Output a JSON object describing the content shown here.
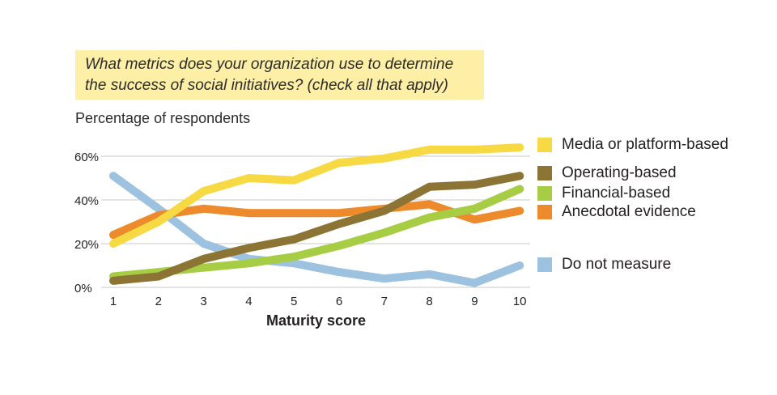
{
  "question": {
    "line1": "What metrics does your organization use to determine",
    "line2": "the success of social initiatives? (check all that apply)"
  },
  "subtitle": "Percentage of respondents",
  "chart_data": {
    "type": "line",
    "xlabel": "Maturity score",
    "ylabel": "Percentage of respondents",
    "x": [
      1,
      2,
      3,
      4,
      5,
      6,
      7,
      8,
      9,
      10
    ],
    "ylim": [
      0,
      60
    ],
    "yticks": [
      "0%",
      "20%",
      "40%",
      "60%"
    ],
    "grid": true,
    "legend_position": "right",
    "series": [
      {
        "name": "Media or platform-based",
        "color": "#f7d944",
        "values": [
          20,
          30,
          44,
          50,
          49,
          57,
          59,
          63,
          63,
          64
        ]
      },
      {
        "name": "Operating-based",
        "color": "#8b7434",
        "values": [
          3,
          5,
          13,
          18,
          22,
          29,
          35,
          46,
          47,
          51
        ]
      },
      {
        "name": "Financial-based",
        "color": "#a7cd45",
        "values": [
          5,
          7,
          9,
          11,
          14,
          19,
          25,
          32,
          36,
          45
        ]
      },
      {
        "name": "Anecdotal evidence",
        "color": "#ed8a2b",
        "values": [
          24,
          33,
          36,
          34,
          34,
          34,
          36,
          38,
          31,
          35
        ]
      },
      {
        "name": "Do not measure",
        "color": "#9cc2e0",
        "values": [
          51,
          36,
          20,
          13,
          11,
          7,
          4,
          6,
          2,
          10
        ]
      }
    ]
  }
}
